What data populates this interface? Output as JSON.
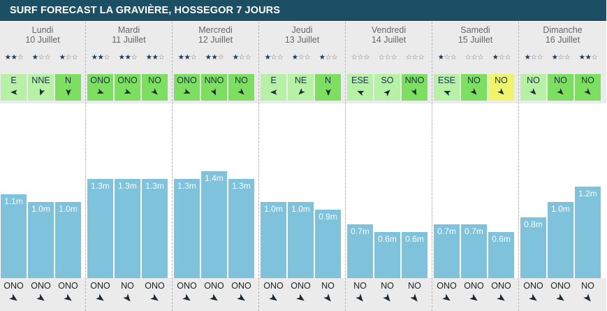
{
  "title": "SURF FORECAST LA GRAVIÈRE, HOSSEGOR 7 JOURS",
  "colors": {
    "header_bg": "#1c4f63",
    "bar": "#7fc2dc",
    "wind_light": "#b6f1a6",
    "wind_medium": "#7ddf5f",
    "wind_yellow": "#eff46a",
    "day_bg": "#ebebeb"
  },
  "days": [
    {
      "name": "Lundi",
      "date": "10 Juillet",
      "slots": [
        {
          "stars": 2,
          "wind": "E",
          "wind_color": "light",
          "height": "1.1m",
          "h": 1.1,
          "swell": "ONO"
        },
        {
          "stars": 1,
          "wind": "NNE",
          "wind_color": "light",
          "height": "1.0m",
          "h": 1.0,
          "swell": "ONO"
        },
        {
          "stars": 1,
          "wind": "N",
          "wind_color": "medium",
          "height": "1.0m",
          "h": 1.0,
          "swell": "ONO"
        }
      ]
    },
    {
      "name": "Mardi",
      "date": "11 Juillet",
      "slots": [
        {
          "stars": 2,
          "wind": "ONO",
          "wind_color": "medium",
          "height": "1.3m",
          "h": 1.3,
          "swell": "ONO"
        },
        {
          "stars": 2,
          "wind": "ONO",
          "wind_color": "medium",
          "height": "1.3m",
          "h": 1.3,
          "swell": "NO"
        },
        {
          "stars": 2,
          "wind": "NO",
          "wind_color": "medium",
          "height": "1.3m",
          "h": 1.3,
          "swell": "ONO"
        }
      ]
    },
    {
      "name": "Mercredi",
      "date": "12 Juillet",
      "slots": [
        {
          "stars": 2,
          "wind": "ONO",
          "wind_color": "medium",
          "height": "1.3m",
          "h": 1.3,
          "swell": "ONO"
        },
        {
          "stars": 2,
          "wind": "NNO",
          "wind_color": "medium",
          "height": "1.4m",
          "h": 1.4,
          "swell": "ONO"
        },
        {
          "stars": 1,
          "wind": "NO",
          "wind_color": "medium",
          "height": "1.3m",
          "h": 1.3,
          "swell": "ONO"
        }
      ]
    },
    {
      "name": "Jeudi",
      "date": "13 Juillet",
      "slots": [
        {
          "stars": 1,
          "wind": "E",
          "wind_color": "light",
          "height": "1.0m",
          "h": 1.0,
          "swell": "ONO"
        },
        {
          "stars": 1,
          "wind": "NE",
          "wind_color": "light",
          "height": "1.0m",
          "h": 1.0,
          "swell": "ONO"
        },
        {
          "stars": 1,
          "wind": "N",
          "wind_color": "medium",
          "height": "0.9m",
          "h": 0.9,
          "swell": "NO"
        }
      ]
    },
    {
      "name": "Vendredi",
      "date": "14 Juillet",
      "slots": [
        {
          "stars": 0,
          "wind": "ESE",
          "wind_color": "light",
          "height": "0.7m",
          "h": 0.7,
          "swell": "NO"
        },
        {
          "stars": 0,
          "wind": "SO",
          "wind_color": "light",
          "height": "0.6m",
          "h": 0.6,
          "swell": "NO"
        },
        {
          "stars": 0,
          "wind": "NNO",
          "wind_color": "medium",
          "height": "0.6m",
          "h": 0.6,
          "swell": "NO"
        }
      ]
    },
    {
      "name": "Samedi",
      "date": "15 Juillet",
      "slots": [
        {
          "stars": 1,
          "wind": "ESE",
          "wind_color": "light",
          "height": "0.7m",
          "h": 0.7,
          "swell": "ONO"
        },
        {
          "stars": 0,
          "wind": "NO",
          "wind_color": "medium",
          "height": "0.7m",
          "h": 0.7,
          "swell": "ONO"
        },
        {
          "stars": 1,
          "wind": "NO",
          "wind_color": "yellow",
          "height": "0.6m",
          "h": 0.6,
          "swell": "ONO"
        }
      ]
    },
    {
      "name": "Dimanche",
      "date": "16 Juillet",
      "slots": [
        {
          "stars": 1,
          "wind": "NO",
          "wind_color": "light",
          "height": "0.8m",
          "h": 0.8,
          "swell": "ONO"
        },
        {
          "stars": 1,
          "wind": "NO",
          "wind_color": "medium",
          "height": "1.0m",
          "h": 1.0,
          "swell": "ONO"
        },
        {
          "stars": 2,
          "wind": "NO",
          "wind_color": "medium",
          "height": "1.2m",
          "h": 1.2,
          "swell": "NO"
        }
      ]
    }
  ]
}
